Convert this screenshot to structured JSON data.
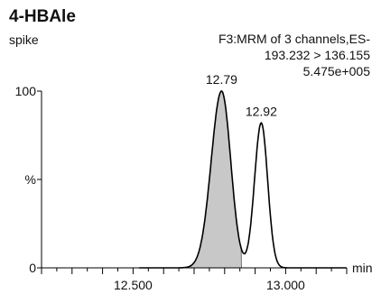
{
  "header": {
    "title": "4-HBAle",
    "subtitle": "spike",
    "info_line1": "F3:MRM of 3 channels,ES-",
    "info_line2": "193.232 > 136.155",
    "info_line3": "5.475e+005"
  },
  "chart_data": {
    "type": "line",
    "xlabel": "min",
    "ylabel": "%",
    "xlim": [
      12.2,
      13.2
    ],
    "ylim": [
      0,
      100
    ],
    "x_ticks": [
      12.5,
      13.0
    ],
    "x_tick_labels": [
      "12.500",
      "13.000"
    ],
    "y_tick_labels": [
      "100",
      "%",
      "0"
    ],
    "peaks": [
      {
        "label": "12.79",
        "rt": 12.79,
        "height": 100,
        "shaded": true
      },
      {
        "label": "12.92",
        "rt": 12.92,
        "height": 82,
        "shaded": false
      }
    ],
    "fill_color": "#c8c8c8",
    "line_color": "#000000"
  }
}
